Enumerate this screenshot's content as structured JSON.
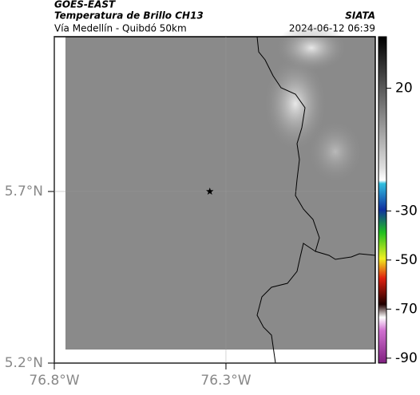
{
  "header": {
    "source": "GOES-EAST",
    "title": "Temperatura de Brillo CH13",
    "subtitle": "Vía Medellín - Quibdó 50km",
    "agency": "SIATA",
    "datetime": "2024-06-12 06:39"
  },
  "map": {
    "latlim": [
      5.2,
      6.151
    ],
    "lonlim": [
      -76.8,
      -75.865
    ],
    "latticks": [
      {
        "value": 5.2,
        "label": "5.2°N"
      },
      {
        "value": 5.7,
        "label": "5.7°N"
      }
    ],
    "lonticks": [
      {
        "value": -76.8,
        "label": "76.8°W"
      },
      {
        "value": -76.3,
        "label": "76.3°W"
      }
    ],
    "grid": true,
    "marker": {
      "lon": -76.347,
      "lat": 5.7
    }
  },
  "colorbar": {
    "lim": [
      -92,
      41
    ],
    "ticks": [
      20,
      -30,
      -50,
      -70,
      -90
    ]
  }
}
